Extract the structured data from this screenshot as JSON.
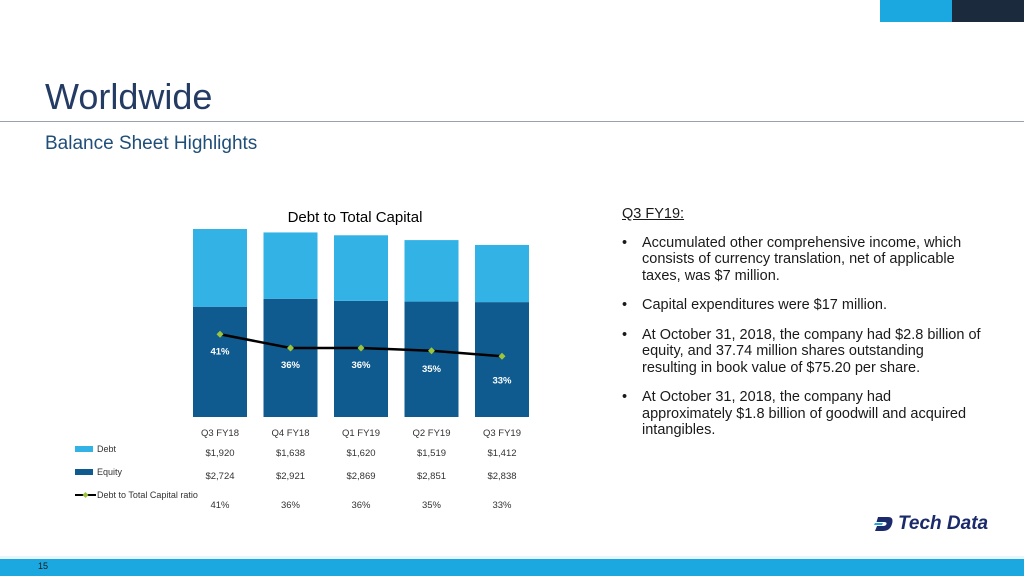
{
  "header": {
    "title": "Worldwide",
    "subtitle": "Balance Sheet Highlights"
  },
  "chart_data": {
    "type": "bar",
    "stacked": true,
    "title": "Debt to Total Capital",
    "categories": [
      "Q3 FY18",
      "Q4 FY18",
      "Q1 FY19",
      "Q2 FY19",
      "Q3 FY19"
    ],
    "series": [
      {
        "name": "Debt",
        "kind": "bar",
        "color": "#33b2e6",
        "values": [
          1920,
          1638,
          1620,
          1519,
          1412
        ],
        "display": [
          "$1,920",
          "$1,638",
          "$1,620",
          "$1,519",
          "$1,412"
        ]
      },
      {
        "name": "Equity",
        "kind": "bar",
        "color": "#0f5b8f",
        "values": [
          2724,
          2921,
          2869,
          2851,
          2838
        ],
        "display": [
          "$2,724",
          "$2,921",
          "$2,869",
          "$2,851",
          "$2,838"
        ]
      },
      {
        "name": "Debt to Total Capital ratio",
        "kind": "line",
        "color": "#000000",
        "marker_color": "#9bc53d",
        "values": [
          41,
          36,
          36,
          35,
          33
        ],
        "display": [
          "41%",
          "36%",
          "36%",
          "35%",
          "33%"
        ]
      }
    ],
    "ylim": [
      0,
      4644
    ]
  },
  "notes": {
    "heading": "Q3 FY19:",
    "bullets": [
      "Accumulated other comprehensive income, which consists of currency translation, net of applicable taxes, was $7 million.",
      "Capital expenditures were $17 million.",
      "At October 31, 2018, the company had $2.8 billion of equity, and 37.74 million shares outstanding resulting in book value of $75.20 per share.",
      "At October 31, 2018, the company had approximately $1.8 billion of goodwill and acquired intangibles."
    ]
  },
  "logo": {
    "text": "Tech Data"
  },
  "footer": {
    "page_number": "15"
  },
  "colors": {
    "accent": "#1ba7df",
    "navy": "#1b2a3c",
    "title": "#243b63"
  }
}
